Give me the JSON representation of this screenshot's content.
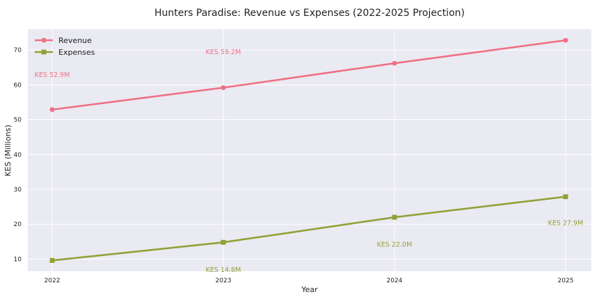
{
  "chart_data": {
    "type": "line",
    "title": "Hunters Paradise: Revenue vs Expenses (2022-2025 Projection)",
    "xlabel": "Year",
    "ylabel": "KES (Millions)",
    "x": [
      "2022",
      "2023",
      "2024",
      "2025"
    ],
    "yticks": [
      10,
      20,
      30,
      40,
      50,
      60,
      70
    ],
    "ylim": [
      6.5,
      76
    ],
    "grid": true,
    "legend_position": "top-left",
    "series": [
      {
        "name": "Revenue",
        "values": [
          52.9,
          59.2,
          66.2,
          72.8
        ],
        "color": "#f07085",
        "marker": "circle",
        "annotations": [
          {
            "index": 0,
            "text": "KES 52.9M",
            "y": 63.0
          },
          {
            "index": 1,
            "text": "KES 59.2M",
            "y": 69.5
          }
        ]
      },
      {
        "name": "Expenses",
        "values": [
          9.6,
          14.8,
          22.0,
          27.9
        ],
        "color": "#93a037",
        "marker": "square",
        "annotations": [
          {
            "index": 1,
            "text": "KES 14.8M",
            "y": 7.0
          },
          {
            "index": 2,
            "text": "KES 22.0M",
            "y": 14.3
          },
          {
            "index": 3,
            "text": "KES 27.9M",
            "y": 20.4
          }
        ]
      }
    ]
  }
}
